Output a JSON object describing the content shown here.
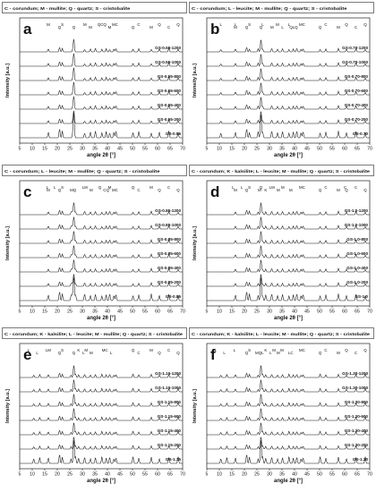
{
  "figure": {
    "panel_ids": [
      "a",
      "b",
      "c",
      "d",
      "e",
      "f"
    ]
  },
  "chart_data": [
    {
      "panel": "a",
      "type": "line",
      "title": "C - corundum; M - mullite; Q - quartz; S - cristobalite",
      "xlabel": "angle 2θ [°]",
      "ylabel": "Intensity [a.u.]",
      "xlim": [
        5,
        70
      ],
      "xticks": [
        5,
        10,
        15,
        20,
        25,
        30,
        35,
        40,
        45,
        50,
        55,
        60,
        65,
        70
      ],
      "series": [
        {
          "name": "GS-0.55-1200"
        },
        {
          "name": "GS-0.55-1000"
        },
        {
          "name": "GS-0.55-800"
        },
        {
          "name": "GS-0.55-600"
        },
        {
          "name": "GS-0.55-400"
        },
        {
          "name": "GS-0.55-200"
        },
        {
          "name": "GS-0.55"
        }
      ],
      "peaks": [
        16.4,
        20.9,
        22.0,
        26.2,
        26.6,
        30.9,
        33.2,
        35.2,
        37.8,
        39.5,
        40.9,
        42.6,
        43.4,
        50.2,
        52.5,
        57.5,
        60.7,
        64.5,
        68.2
      ],
      "annotations": [
        {
          "label": "M",
          "x": 16.4
        },
        {
          "label": "Q",
          "x": 20.9
        },
        {
          "label": "S",
          "x": 22.0
        },
        {
          "label": "Q",
          "x": 26.6
        },
        {
          "label": "M",
          "x": 31.0
        },
        {
          "label": "M",
          "x": 33.2
        },
        {
          "label": "QCQ",
          "x": 37.8
        },
        {
          "label": "M",
          "x": 40.9
        },
        {
          "label": "MC",
          "x": 43.0
        },
        {
          "label": "Q",
          "x": 50.2
        },
        {
          "label": "C",
          "x": 52.5
        },
        {
          "label": "M",
          "x": 57.5
        },
        {
          "label": "Q",
          "x": 60.7
        },
        {
          "label": "C",
          "x": 64.5
        },
        {
          "label": "Q",
          "x": 68.2
        }
      ]
    },
    {
      "panel": "b",
      "type": "line",
      "title": "C - corundum; L - leucite; M - mullite; Q - quartz; S - cristobalite",
      "xlabel": "angle 2θ [°]",
      "ylabel": "Intensity [a.u.]",
      "xlim": [
        5,
        70
      ],
      "xticks": [
        5,
        10,
        15,
        20,
        25,
        30,
        35,
        40,
        45,
        50,
        55,
        60,
        65,
        70
      ],
      "series": [
        {
          "name": "GS-0.70-1200"
        },
        {
          "name": "GS-0.70-1000"
        },
        {
          "name": "GS-0.70-800"
        },
        {
          "name": "GS-0.70-600"
        },
        {
          "name": "GS-0.70-400"
        },
        {
          "name": "GS-0.70-200"
        },
        {
          "name": "GS-0.70"
        }
      ],
      "peaks": [
        10.6,
        16.4,
        20.9,
        22.0,
        25.5,
        26.6,
        27.3,
        30.9,
        33.2,
        35.2,
        37.8,
        39.5,
        40.9,
        42.6,
        43.4,
        50.2,
        52.5,
        57.5,
        60.7,
        64.5,
        68.2
      ],
      "annotations": [
        {
          "label": "L",
          "x": 10.6
        },
        {
          "label": "M",
          "x": 16.4
        },
        {
          "label": "L",
          "x": 16.4
        },
        {
          "label": "Q",
          "x": 20.9
        },
        {
          "label": "S",
          "x": 22.0
        },
        {
          "label": "Q",
          "x": 26.6
        },
        {
          "label": "L",
          "x": 27.3
        },
        {
          "label": "M",
          "x": 31.0
        },
        {
          "label": "M",
          "x": 33.2
        },
        {
          "label": "L",
          "x": 35.2
        },
        {
          "label": "L",
          "x": 37.8
        },
        {
          "label": "QLQ",
          "x": 39.6
        },
        {
          "label": "MC",
          "x": 43.0
        },
        {
          "label": "Q",
          "x": 50.2
        },
        {
          "label": "C",
          "x": 52.5
        },
        {
          "label": "M",
          "x": 57.5
        },
        {
          "label": "Q",
          "x": 60.7
        },
        {
          "label": "C",
          "x": 64.5
        },
        {
          "label": "Q",
          "x": 68.2
        }
      ]
    },
    {
      "panel": "c",
      "type": "line",
      "title": "C - corundum; L - leucite; M - mullite; Q - quartz; S - cristobalite",
      "xlabel": "angle 2θ [°]",
      "ylabel": "Intensity [a.u.]",
      "xlim": [
        5,
        70
      ],
      "xticks": [
        5,
        10,
        15,
        20,
        25,
        30,
        35,
        40,
        45,
        50,
        55,
        60,
        65,
        70
      ],
      "series": [
        {
          "name": "GS-0.85-1200"
        },
        {
          "name": "GS-0.85-1000"
        },
        {
          "name": "GS-0.85-800"
        },
        {
          "name": "GS-0.85-600"
        },
        {
          "name": "GS-0.85-400"
        },
        {
          "name": "GS-0.85-200"
        },
        {
          "name": "GS-0.85"
        }
      ],
      "peaks": [
        16.4,
        20.9,
        22.0,
        25.5,
        26.0,
        26.6,
        27.3,
        30.9,
        33.2,
        35.2,
        37.8,
        39.5,
        40.9,
        42.6,
        43.4,
        50.2,
        52.5,
        57.5,
        60.7,
        64.5,
        68.2
      ],
      "annotations": [
        {
          "label": "L",
          "x": 16.0
        },
        {
          "label": "M",
          "x": 16.4
        },
        {
          "label": "L",
          "x": 19.0
        },
        {
          "label": "Q",
          "x": 20.9
        },
        {
          "label": "S",
          "x": 22.0
        },
        {
          "label": "MQ",
          "x": 26.3
        },
        {
          "label": "LM",
          "x": 31.0
        },
        {
          "label": "M",
          "x": 33.5
        },
        {
          "label": "Q",
          "x": 37.0
        },
        {
          "label": "CQ",
          "x": 39.5
        },
        {
          "label": "M",
          "x": 40.9
        },
        {
          "label": "MC",
          "x": 43.0
        },
        {
          "label": "Q",
          "x": 50.2
        },
        {
          "label": "C",
          "x": 52.5
        },
        {
          "label": "M",
          "x": 57.5
        },
        {
          "label": "Q",
          "x": 60.7
        },
        {
          "label": "C",
          "x": 64.5
        },
        {
          "label": "Q",
          "x": 68.2
        }
      ]
    },
    {
      "panel": "d",
      "type": "line",
      "title": "C - corundum; K - kalsilite; L - leucite; M - mullite; Q - quartz; S - cristobalite",
      "xlabel": "angle 2θ [°]",
      "ylabel": "Intensity [a.u.]",
      "xlim": [
        5,
        70
      ],
      "xticks": [
        5,
        10,
        15,
        20,
        25,
        30,
        35,
        40,
        45,
        50,
        55,
        60,
        65,
        70
      ],
      "series": [
        {
          "name": "GS-1.0-1200"
        },
        {
          "name": "GS-1.0-1000"
        },
        {
          "name": "GS-1.0-800"
        },
        {
          "name": "GS-1.0-600"
        },
        {
          "name": "GS-1.0-400"
        },
        {
          "name": "GS-1.0-200"
        },
        {
          "name": "GS-1.0"
        }
      ],
      "peaks": [
        16.4,
        20.9,
        22.0,
        25.5,
        26.6,
        27.3,
        28.5,
        30.9,
        33.2,
        35.2,
        37.8,
        39.5,
        40.9,
        42.6,
        43.4,
        50.2,
        52.5,
        57.5,
        60.7,
        64.5,
        68.2
      ],
      "annotations": [
        {
          "label": "L",
          "x": 15.5
        },
        {
          "label": "M",
          "x": 16.4
        },
        {
          "label": "L",
          "x": 19.0
        },
        {
          "label": "Q",
          "x": 20.9
        },
        {
          "label": "S",
          "x": 22.0
        },
        {
          "label": "M",
          "x": 26.0
        },
        {
          "label": "Q",
          "x": 26.6
        },
        {
          "label": "K",
          "x": 28.5
        },
        {
          "label": "LM",
          "x": 31.0
        },
        {
          "label": "M",
          "x": 33.5
        },
        {
          "label": "M",
          "x": 35.3
        },
        {
          "label": "M",
          "x": 38.5
        },
        {
          "label": "MC",
          "x": 43.0
        },
        {
          "label": "Q",
          "x": 50.2
        },
        {
          "label": "C",
          "x": 52.5
        },
        {
          "label": "M",
          "x": 57.5
        },
        {
          "label": "C",
          "x": 60.2
        },
        {
          "label": "Q",
          "x": 60.7
        },
        {
          "label": "C",
          "x": 64.5
        },
        {
          "label": "Q",
          "x": 68.2
        }
      ]
    },
    {
      "panel": "e",
      "type": "line",
      "title": "C - corundum; K - kalsilite; L - leucite; M - mullite; Q - quartz; S - cristobalite",
      "xlabel": "angle 2θ [°]",
      "ylabel": "Intensity [a.u.]",
      "xlim": [
        5,
        70
      ],
      "xticks": [
        5,
        10,
        15,
        20,
        25,
        30,
        35,
        40,
        45,
        50,
        55,
        60,
        65,
        70
      ],
      "series": [
        {
          "name": "GS-1.15-1200"
        },
        {
          "name": "GS-1.15-1000"
        },
        {
          "name": "GS-1.15-800"
        },
        {
          "name": "GS-1.15-600"
        },
        {
          "name": "GS-1.15-400"
        },
        {
          "name": "GS-1.15-200"
        },
        {
          "name": "GS-1.15"
        }
      ],
      "peaks": [
        10.6,
        13.0,
        16.4,
        20.9,
        22.0,
        25.5,
        26.6,
        27.3,
        28.5,
        30.9,
        33.2,
        35.2,
        37.8,
        39.5,
        40.9,
        42.6,
        43.4,
        50.2,
        52.5,
        57.5,
        60.7,
        64.5,
        68.2
      ],
      "annotations": [
        {
          "label": "L",
          "x": 8.5
        },
        {
          "label": "L",
          "x": 12.0
        },
        {
          "label": "LM",
          "x": 16.4
        },
        {
          "label": "Q",
          "x": 20.9
        },
        {
          "label": "S",
          "x": 22.0
        },
        {
          "label": "Q",
          "x": 26.6
        },
        {
          "label": "K",
          "x": 28.5
        },
        {
          "label": "L",
          "x": 30.5
        },
        {
          "label": "M",
          "x": 31.5
        },
        {
          "label": "M",
          "x": 33.5
        },
        {
          "label": "MC",
          "x": 39.0
        },
        {
          "label": "L",
          "x": 41.5
        },
        {
          "label": "Q",
          "x": 50.2
        },
        {
          "label": "C",
          "x": 52.5
        },
        {
          "label": "M",
          "x": 57.5
        },
        {
          "label": "Q",
          "x": 60.7
        },
        {
          "label": "C",
          "x": 64.5
        },
        {
          "label": "Q",
          "x": 68.2
        }
      ]
    },
    {
      "panel": "f",
      "type": "line",
      "title": "C - corundum; K - kalsilite; L - leucite; M - mullite; Q - quartz; S - cristobalite",
      "xlabel": "angle 2θ [°]",
      "ylabel": "Intensity [a.u.]",
      "xlim": [
        5,
        70
      ],
      "xticks": [
        5,
        10,
        15,
        20,
        25,
        30,
        35,
        40,
        45,
        50,
        55,
        60,
        65,
        70
      ],
      "series": [
        {
          "name": "GS-1.30-1200"
        },
        {
          "name": "GS-1.30-1000"
        },
        {
          "name": "GS-1.30-800"
        },
        {
          "name": "GS-1.30-600"
        },
        {
          "name": "GS-1.30-400"
        },
        {
          "name": "GS-1.30-200"
        },
        {
          "name": "GS-1.30"
        }
      ],
      "peaks": [
        10.6,
        13.0,
        16.4,
        20.9,
        22.0,
        25.5,
        26.6,
        27.3,
        28.5,
        30.9,
        33.2,
        35.2,
        37.8,
        39.5,
        40.9,
        42.6,
        43.4,
        50.2,
        52.5,
        57.5,
        60.7,
        64.5,
        68.2
      ],
      "annotations": [
        {
          "label": "L",
          "x": 8.5
        },
        {
          "label": "L",
          "x": 12.0
        },
        {
          "label": "L",
          "x": 16.0
        },
        {
          "label": "Q",
          "x": 20.9
        },
        {
          "label": "S",
          "x": 22.0
        },
        {
          "label": "MQL",
          "x": 26.0
        },
        {
          "label": "K",
          "x": 28.5
        },
        {
          "label": "L",
          "x": 30.5
        },
        {
          "label": "M",
          "x": 31.8
        },
        {
          "label": "M",
          "x": 33.5
        },
        {
          "label": "M",
          "x": 35.0
        },
        {
          "label": "LC",
          "x": 38.5
        },
        {
          "label": "MC",
          "x": 43.0
        },
        {
          "label": "Q",
          "x": 50.2
        },
        {
          "label": "C",
          "x": 52.5
        },
        {
          "label": "M",
          "x": 57.5
        },
        {
          "label": "Q",
          "x": 60.7
        },
        {
          "label": "C",
          "x": 64.5
        },
        {
          "label": "Q",
          "x": 68.2
        }
      ]
    }
  ]
}
